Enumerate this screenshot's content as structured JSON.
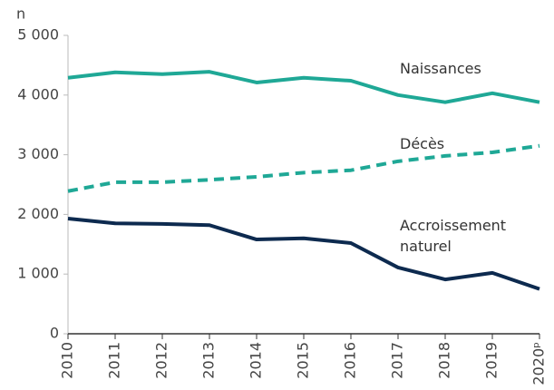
{
  "chart_data": {
    "type": "line",
    "y_label": "n",
    "categories": [
      "2010",
      "2011",
      "2012",
      "2013",
      "2014",
      "2015",
      "2016",
      "2017",
      "2018",
      "2019",
      "2020ᵖ"
    ],
    "series": [
      {
        "name": "Naissances",
        "color": "#1fa896",
        "style": "solid",
        "values": [
          4290,
          4380,
          4350,
          4390,
          4210,
          4290,
          4240,
          4000,
          3880,
          4030,
          3880
        ]
      },
      {
        "name": "Décès",
        "color": "#1fa896",
        "style": "dashed",
        "values": [
          2390,
          2540,
          2540,
          2580,
          2630,
          2700,
          2740,
          2890,
          2980,
          3040,
          3150
        ]
      },
      {
        "name": "Accroissement naturel",
        "color": "#0d2a4f",
        "style": "solid",
        "values": [
          1930,
          1850,
          1840,
          1820,
          1580,
          1600,
          1520,
          1110,
          910,
          1020,
          750
        ]
      }
    ],
    "ylim": [
      0,
      5000
    ],
    "yticks": [
      0,
      {
        "value": 1000,
        "label": "1 000"
      },
      {
        "value": 2000,
        "label": "2 000"
      },
      {
        "value": 3000,
        "label": "3 000"
      },
      {
        "value": 4000,
        "label": "4 000"
      },
      {
        "value": 5000,
        "label": "5 000"
      }
    ]
  }
}
